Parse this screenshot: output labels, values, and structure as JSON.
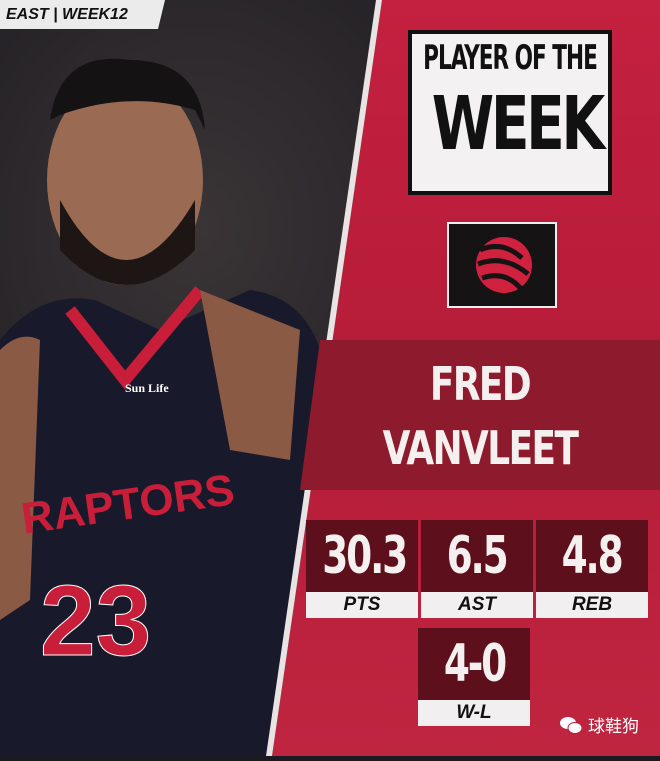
{
  "tag": "EAST | WEEK12",
  "title": {
    "line1": "PLAYER OF THE",
    "line2": "WEEK"
  },
  "team_logo": "raptors-basketball-claw-logo",
  "player": {
    "first": "FRED",
    "last": "VANVLEET",
    "jersey_number": "23",
    "jersey_text": "RAPTORS",
    "sponsor": "Sun Life"
  },
  "stats": [
    {
      "value": "30.3",
      "label": "PTS"
    },
    {
      "value": "6.5",
      "label": "AST"
    },
    {
      "value": "4.8",
      "label": "REB"
    },
    {
      "value": "4-0",
      "label": "W-L"
    }
  ],
  "watermark": "球鞋狗",
  "colors": {
    "panel": "#c4203f",
    "dark": "#5d0f1c"
  }
}
